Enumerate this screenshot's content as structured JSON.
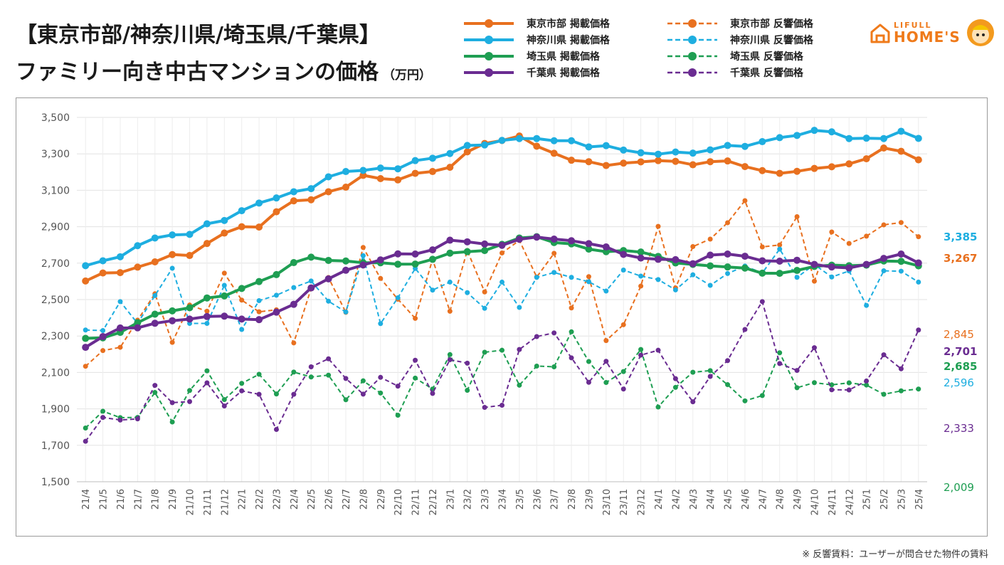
{
  "title_line1": "【東京市部/神奈川県/埼玉県/千葉県】",
  "title_line2": "ファミリー向き中古マンションの価格",
  "title_unit": "（万円）",
  "logo": {
    "top": "LIFULL",
    "bottom": "HOME'S"
  },
  "footnote": "※ 反響賃料：ユーザーが問合せた物件の賃料",
  "chart_data": {
    "type": "line",
    "ylim": [
      1500,
      3500
    ],
    "yticks": [
      "1,500",
      "1,700",
      "1,900",
      "2,100",
      "2,300",
      "2,500",
      "2,700",
      "2,900",
      "3,100",
      "3,300",
      "3,500"
    ],
    "categories": [
      "21/4",
      "21/5",
      "21/6",
      "21/7",
      "21/8",
      "21/9",
      "21/10",
      "21/11",
      "21/12",
      "22/1",
      "22/2",
      "22/3",
      "22/4",
      "22/5",
      "22/6",
      "22/7",
      "22/8",
      "22/9",
      "22/10",
      "22/11",
      "22/12",
      "23/1",
      "23/2",
      "23/3",
      "23/4",
      "23/5",
      "23/6",
      "23/7",
      "23/8",
      "23/9",
      "23/10",
      "23/11",
      "23/12",
      "24/1",
      "24/2",
      "24/3",
      "24/4",
      "24/5",
      "24/6",
      "24/7",
      "24/8",
      "24/9",
      "24/10",
      "24/11",
      "24/12",
      "25/1",
      "25/2",
      "25/3",
      "25/4"
    ],
    "series": [
      {
        "name": "東京市部 掲載価格",
        "color": "#e8701f",
        "style": "solid",
        "end_label": "3,267",
        "values": [
          2602,
          2646,
          2648,
          2678,
          2707,
          2747,
          2742,
          2808,
          2865,
          2900,
          2898,
          2982,
          3042,
          3048,
          3092,
          3117,
          3182,
          3164,
          3157,
          3193,
          3203,
          3226,
          3311,
          3357,
          3373,
          3398,
          3342,
          3303,
          3265,
          3257,
          3236,
          3249,
          3256,
          3263,
          3259,
          3240,
          3257,
          3261,
          3230,
          3208,
          3193,
          3204,
          3220,
          3229,
          3245,
          3273,
          3332,
          3314,
          3267
        ]
      },
      {
        "name": "神奈川県 掲載価格",
        "color": "#1eaee0",
        "style": "solid",
        "end_label": "3,385",
        "values": [
          2686,
          2713,
          2735,
          2796,
          2838,
          2855,
          2858,
          2916,
          2934,
          2988,
          3030,
          3058,
          3092,
          3109,
          3174,
          3203,
          3209,
          3222,
          3218,
          3263,
          3276,
          3302,
          3346,
          3349,
          3374,
          3384,
          3384,
          3372,
          3372,
          3338,
          3345,
          3321,
          3306,
          3298,
          3310,
          3304,
          3322,
          3346,
          3341,
          3367,
          3389,
          3401,
          3429,
          3421,
          3384,
          3386,
          3384,
          3424,
          3385
        ]
      },
      {
        "name": "埼玉県 掲載価格",
        "color": "#1e9e52",
        "style": "solid",
        "end_label": "2,685",
        "values": [
          2287,
          2290,
          2320,
          2373,
          2420,
          2438,
          2455,
          2509,
          2520,
          2561,
          2599,
          2637,
          2703,
          2733,
          2715,
          2712,
          2702,
          2702,
          2694,
          2695,
          2721,
          2755,
          2763,
          2769,
          2803,
          2838,
          2845,
          2813,
          2806,
          2777,
          2763,
          2769,
          2761,
          2737,
          2701,
          2693,
          2685,
          2679,
          2673,
          2645,
          2644,
          2660,
          2682,
          2689,
          2686,
          2689,
          2712,
          2710,
          2685
        ]
      },
      {
        "name": "千葉県 掲載価格",
        "color": "#6a2c91",
        "style": "solid",
        "end_label": "2,701",
        "values": [
          2238,
          2297,
          2344,
          2345,
          2370,
          2384,
          2393,
          2407,
          2409,
          2393,
          2390,
          2431,
          2474,
          2564,
          2614,
          2661,
          2690,
          2718,
          2751,
          2750,
          2773,
          2826,
          2817,
          2805,
          2798,
          2831,
          2843,
          2832,
          2823,
          2807,
          2789,
          2748,
          2728,
          2721,
          2719,
          2697,
          2744,
          2750,
          2738,
          2713,
          2711,
          2716,
          2693,
          2679,
          2674,
          2693,
          2726,
          2750,
          2701
        ]
      },
      {
        "name": "東京市部 反響価格",
        "color": "#e8701f",
        "style": "dashed",
        "end_label": "2,845",
        "values": [
          2134,
          2220,
          2238,
          2387,
          2532,
          2265,
          2470,
          2436,
          2645,
          2497,
          2433,
          2444,
          2262,
          2560,
          2621,
          2430,
          2786,
          2616,
          2502,
          2397,
          2721,
          2436,
          2769,
          2542,
          2756,
          2825,
          2624,
          2754,
          2454,
          2626,
          2275,
          2362,
          2574,
          2902,
          2564,
          2791,
          2832,
          2922,
          3043,
          2789,
          2800,
          2955,
          2601,
          2871,
          2808,
          2848,
          2910,
          2923,
          2845
        ]
      },
      {
        "name": "神奈川県 反響価格",
        "color": "#1eaee0",
        "style": "dashed",
        "end_label": "2,596",
        "values": [
          2333,
          2330,
          2489,
          2369,
          2522,
          2672,
          2369,
          2369,
          2578,
          2336,
          2494,
          2524,
          2566,
          2602,
          2491,
          2432,
          2741,
          2368,
          2510,
          2671,
          2552,
          2596,
          2538,
          2452,
          2596,
          2457,
          2622,
          2649,
          2622,
          2598,
          2547,
          2662,
          2629,
          2610,
          2553,
          2636,
          2578,
          2643,
          2684,
          2646,
          2777,
          2622,
          2692,
          2624,
          2657,
          2468,
          2658,
          2656,
          2596
        ]
      },
      {
        "name": "埼玉県 反響価格",
        "color": "#1e9e52",
        "style": "dashed",
        "end_label": "2,009",
        "values": [
          1795,
          1887,
          1852,
          1853,
          1990,
          1828,
          2001,
          2109,
          1951,
          2040,
          2090,
          1982,
          2102,
          2075,
          2085,
          1950,
          2054,
          1987,
          1865,
          2069,
          2009,
          2198,
          2002,
          2211,
          2222,
          2030,
          2135,
          2131,
          2323,
          2160,
          2045,
          2105,
          2226,
          1910,
          2018,
          2101,
          2110,
          2033,
          1944,
          1973,
          2208,
          2016,
          2044,
          2032,
          2043,
          2031,
          1980,
          1999,
          2009
        ]
      },
      {
        "name": "千葉県 反響価格",
        "color": "#6a2c91",
        "style": "dashed",
        "end_label": "2,333",
        "values": [
          1722,
          1853,
          1839,
          1845,
          2029,
          1934,
          1940,
          2043,
          1916,
          1999,
          1980,
          1787,
          1980,
          2131,
          2175,
          2067,
          1981,
          2073,
          2025,
          2167,
          1985,
          2170,
          2151,
          1908,
          1920,
          2226,
          2297,
          2317,
          2180,
          2046,
          2161,
          2009,
          2195,
          2222,
          2066,
          1939,
          2078,
          2165,
          2336,
          2489,
          2149,
          2111,
          2236,
          2005,
          2004,
          2053,
          2197,
          2120,
          2333
        ]
      }
    ]
  }
}
